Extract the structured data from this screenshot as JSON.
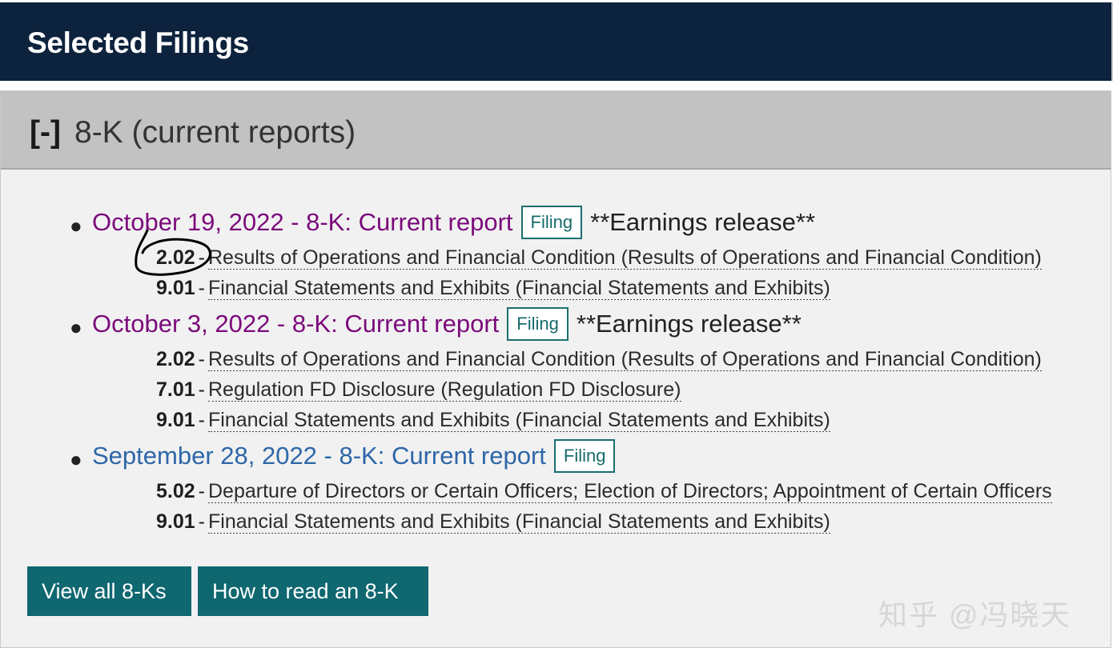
{
  "header": {
    "title": "Selected Filings"
  },
  "section": {
    "toggle": "[-]",
    "title": "8-K (current reports)"
  },
  "filings": [
    {
      "link": "October 19, 2022 - 8-K: Current report",
      "badge": "Filing",
      "note": "**Earnings release**",
      "items": [
        {
          "num": "2.02",
          "dash": "-",
          "text": "Results of Operations and Financial Condition (Results of Operations and Financial Condition)"
        },
        {
          "num": "9.01",
          "dash": "-",
          "text": "Financial Statements and Exhibits (Financial Statements and Exhibits)"
        }
      ]
    },
    {
      "link": "October 3, 2022 - 8-K: Current report",
      "badge": "Filing",
      "note": "**Earnings release**",
      "items": [
        {
          "num": "2.02",
          "dash": "-",
          "text": "Results of Operations and Financial Condition (Results of Operations and Financial Condition)"
        },
        {
          "num": "7.01",
          "dash": "-",
          "text": "Regulation FD Disclosure (Regulation FD Disclosure)"
        },
        {
          "num": "9.01",
          "dash": "-",
          "text": "Financial Statements and Exhibits (Financial Statements and Exhibits)"
        }
      ]
    },
    {
      "link": "September 28, 2022 - 8-K: Current report",
      "badge": "Filing",
      "items": [
        {
          "num": "5.02",
          "dash": "-",
          "text": "Departure of Directors or Certain Officers; Election of Directors; Appointment of Certain Officers"
        },
        {
          "num": "9.01",
          "dash": "-",
          "text": "Financial Statements and Exhibits (Financial Statements and Exhibits)"
        }
      ]
    }
  ],
  "buttons": {
    "view_all": "View all 8-Ks",
    "how_to": "How to read an 8-K"
  },
  "watermark": "知乎 @冯晓天",
  "colors": {
    "header_bg": "#0d223d",
    "visited_link": "#7b0a7b",
    "unvisited_link": "#2e66a8",
    "button_bg": "#0f6770",
    "badge_border": "#1c6e6e"
  }
}
